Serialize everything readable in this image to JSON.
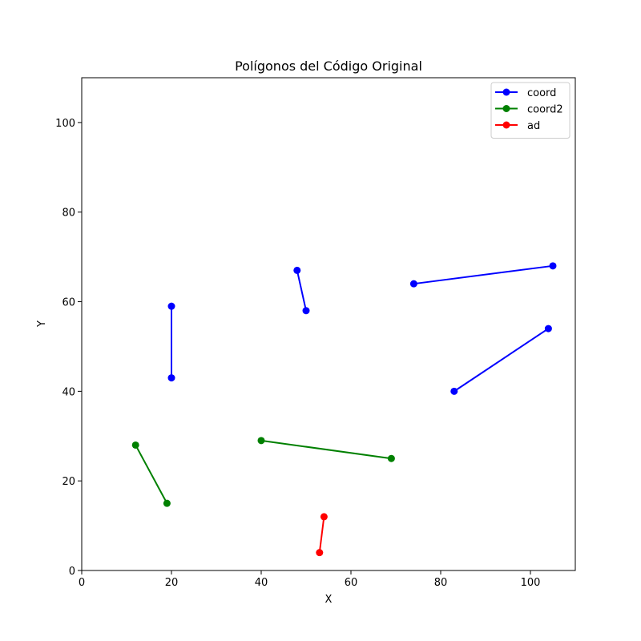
{
  "chart_data": {
    "type": "line",
    "title": "Polígonos del Código Original",
    "xlabel": "X",
    "ylabel": "Y",
    "xlim": [
      0,
      110
    ],
    "ylim": [
      0,
      110
    ],
    "xticks": [
      0,
      20,
      40,
      60,
      80,
      100
    ],
    "yticks": [
      0,
      20,
      40,
      60,
      80,
      100
    ],
    "grid": false,
    "legend_position": "top-right",
    "series": [
      {
        "name": "coord",
        "color": "#0000ff",
        "marker": "circle",
        "segments": [
          [
            [
              20,
              59
            ],
            [
              20,
              43
            ]
          ],
          [
            [
              48,
              67
            ],
            [
              50,
              58
            ]
          ],
          [
            [
              74,
              64
            ],
            [
              105,
              68
            ]
          ],
          [
            [
              83,
              40
            ],
            [
              104,
              54
            ]
          ]
        ]
      },
      {
        "name": "coord2",
        "color": "#008000",
        "marker": "circle",
        "segments": [
          [
            [
              12,
              28
            ],
            [
              19,
              15
            ]
          ],
          [
            [
              40,
              29
            ],
            [
              69,
              25
            ]
          ]
        ]
      },
      {
        "name": "ad",
        "color": "#ff0000",
        "marker": "circle",
        "segments": [
          [
            [
              53,
              4
            ],
            [
              54,
              12
            ]
          ]
        ]
      }
    ]
  }
}
